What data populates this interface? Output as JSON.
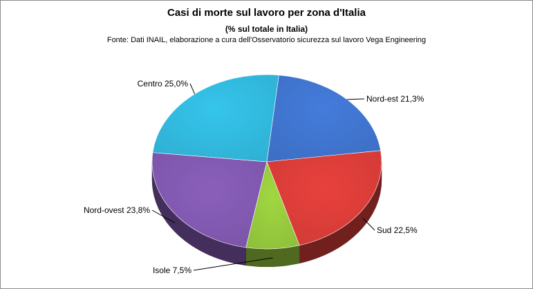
{
  "chart_data": {
    "type": "pie",
    "title": "Casi di morte sul lavoro per zona d'Italia",
    "subtitle": "(% sul totale in Italia)",
    "source": "Fonte: Dati INAIL, elaborazione a cura dell'Osservatorio sicurezza sul lavoro Vega Engineering",
    "slices": [
      {
        "name": "Nord-est",
        "value": 21.3,
        "label": "Nord-est 21,3%",
        "color": "#3d6fc4"
      },
      {
        "name": "Sud",
        "value": 22.5,
        "label": "Sud 22,5%",
        "color": "#d03a36"
      },
      {
        "name": "Isole",
        "value": 7.5,
        "label": "Isole 7,5%",
        "color": "#8fc03a"
      },
      {
        "name": "Nord-ovest",
        "value": 23.8,
        "label": "Nord-ovest 23,8%",
        "color": "#7b55a8"
      },
      {
        "name": "Centro",
        "value": 25.0,
        "label": "Centro 25,0%",
        "color": "#2fb0d3"
      }
    ]
  }
}
